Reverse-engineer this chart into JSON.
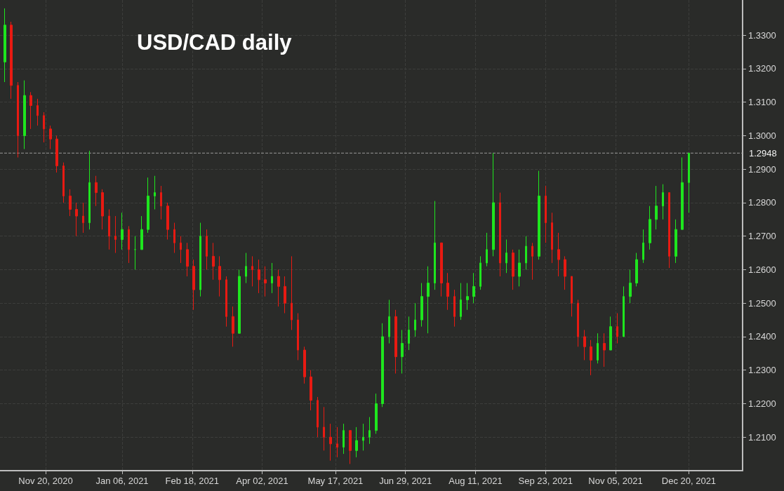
{
  "chart_data": {
    "type": "candlestick",
    "title": "USD/CAD daily",
    "xlim": [
      "2020-10-23",
      "2022-01-22"
    ],
    "xticks": [
      {
        "value": "2020-11-20",
        "label": "Nov 20, 2020"
      },
      {
        "value": "2021-01-06",
        "label": "Jan 06, 2021"
      },
      {
        "value": "2021-02-18",
        "label": "Feb 18, 2021"
      },
      {
        "value": "2021-04-02",
        "label": "Apr 02, 2021"
      },
      {
        "value": "2021-05-17",
        "label": "May 17, 2021"
      },
      {
        "value": "2021-06-29",
        "label": "Jun 29, 2021"
      },
      {
        "value": "2021-08-11",
        "label": "Aug 11, 2021"
      },
      {
        "value": "2021-09-23",
        "label": "Sep 23, 2021"
      },
      {
        "value": "2021-11-05",
        "label": "Nov 05, 2021"
      },
      {
        "value": "2021-12-20",
        "label": "Dec 20, 2021"
      }
    ],
    "ylim": [
      1.2,
      1.3405
    ],
    "yticks": [
      {
        "value": 1.21,
        "label": "1.2100"
      },
      {
        "value": 1.22,
        "label": "1.2200"
      },
      {
        "value": 1.23,
        "label": "1.2300"
      },
      {
        "value": 1.24,
        "label": "1.2400"
      },
      {
        "value": 1.25,
        "label": "1.2500"
      },
      {
        "value": 1.26,
        "label": "1.2600"
      },
      {
        "value": 1.27,
        "label": "1.2700"
      },
      {
        "value": 1.28,
        "label": "1.2800"
      },
      {
        "value": 1.29,
        "label": "1.2900"
      },
      {
        "value": 1.3,
        "label": "1.3000"
      },
      {
        "value": 1.31,
        "label": "1.3100"
      },
      {
        "value": 1.32,
        "label": "1.3200"
      },
      {
        "value": 1.33,
        "label": "1.3300"
      }
    ],
    "grid": true,
    "ref_lines": [
      {
        "axis": "y",
        "value": 1.2948,
        "label": "1.2948",
        "color": "#9a9a9a",
        "line_style": "dashed"
      }
    ],
    "x": [
      "2020-10-26",
      "2020-10-30",
      "2020-11-03",
      "2020-11-07",
      "2020-11-11",
      "2020-11-15",
      "2020-11-19",
      "2020-11-23",
      "2020-11-27",
      "2020-12-01",
      "2020-12-05",
      "2020-12-09",
      "2020-12-13",
      "2020-12-17",
      "2020-12-21",
      "2020-12-25",
      "2020-12-29",
      "2021-01-02",
      "2021-01-06",
      "2021-01-10",
      "2021-01-14",
      "2021-01-18",
      "2021-01-22",
      "2021-01-26",
      "2021-01-30",
      "2021-02-03",
      "2021-02-07",
      "2021-02-11",
      "2021-02-15",
      "2021-02-19",
      "2021-02-23",
      "2021-02-27",
      "2021-03-03",
      "2021-03-07",
      "2021-03-11",
      "2021-03-15",
      "2021-03-19",
      "2021-03-23",
      "2021-03-27",
      "2021-03-31",
      "2021-04-04",
      "2021-04-08",
      "2021-04-12",
      "2021-04-16",
      "2021-04-20",
      "2021-04-24",
      "2021-04-28",
      "2021-05-02",
      "2021-05-06",
      "2021-05-10",
      "2021-05-14",
      "2021-05-18",
      "2021-05-22",
      "2021-05-26",
      "2021-05-30",
      "2021-06-03",
      "2021-06-07",
      "2021-06-11",
      "2021-06-15",
      "2021-06-19",
      "2021-06-23",
      "2021-06-27",
      "2021-07-01",
      "2021-07-05",
      "2021-07-09",
      "2021-07-13",
      "2021-07-17",
      "2021-07-21",
      "2021-07-25",
      "2021-07-29",
      "2021-08-02",
      "2021-08-06",
      "2021-08-10",
      "2021-08-14",
      "2021-08-18",
      "2021-08-22",
      "2021-08-26",
      "2021-08-30",
      "2021-09-03",
      "2021-09-07",
      "2021-09-11",
      "2021-09-15",
      "2021-09-19",
      "2021-09-23",
      "2021-09-27",
      "2021-10-01",
      "2021-10-05",
      "2021-10-09",
      "2021-10-13",
      "2021-10-17",
      "2021-10-21",
      "2021-10-25",
      "2021-10-29",
      "2021-11-02",
      "2021-11-06",
      "2021-11-10",
      "2021-11-14",
      "2021-11-18",
      "2021-11-22",
      "2021-11-26",
      "2021-11-30",
      "2021-12-04",
      "2021-12-08",
      "2021-12-12",
      "2021-12-16",
      "2021-12-20"
    ],
    "ohlc": [
      [
        1.322,
        1.338,
        1.316,
        1.333
      ],
      [
        1.333,
        1.334,
        1.311,
        1.315
      ],
      [
        1.315,
        1.316,
        1.2935,
        1.3
      ],
      [
        1.3,
        1.3165,
        1.296,
        1.312
      ],
      [
        1.312,
        1.313,
        1.302,
        1.309
      ],
      [
        1.309,
        1.311,
        1.303,
        1.306
      ],
      [
        1.306,
        1.307,
        1.298,
        1.302
      ],
      [
        1.302,
        1.303,
        1.296,
        1.299
      ],
      [
        1.299,
        1.3,
        1.289,
        1.291
      ],
      [
        1.291,
        1.292,
        1.28,
        1.282
      ],
      [
        1.282,
        1.284,
        1.276,
        1.278
      ],
      [
        1.278,
        1.28,
        1.27,
        1.276
      ],
      [
        1.276,
        1.28,
        1.271,
        1.274
      ],
      [
        1.274,
        1.2955,
        1.272,
        1.286
      ],
      [
        1.286,
        1.288,
        1.279,
        1.283
      ],
      [
        1.283,
        1.284,
        1.272,
        1.276
      ],
      [
        1.276,
        1.278,
        1.266,
        1.27
      ],
      [
        1.27,
        1.276,
        1.265,
        1.269
      ],
      [
        1.269,
        1.277,
        1.266,
        1.272
      ],
      [
        1.272,
        1.273,
        1.262,
        1.266
      ],
      [
        1.266,
        1.27,
        1.26,
        1.266
      ],
      [
        1.266,
        1.276,
        1.266,
        1.272
      ],
      [
        1.272,
        1.2875,
        1.271,
        1.282
      ],
      [
        1.282,
        1.288,
        1.278,
        1.283
      ],
      [
        1.283,
        1.285,
        1.275,
        1.279
      ],
      [
        1.279,
        1.28,
        1.269,
        1.272
      ],
      [
        1.272,
        1.274,
        1.265,
        1.268
      ],
      [
        1.268,
        1.27,
        1.262,
        1.266
      ],
      [
        1.266,
        1.268,
        1.258,
        1.261
      ],
      [
        1.261,
        1.263,
        1.248,
        1.254
      ],
      [
        1.254,
        1.274,
        1.252,
        1.27
      ],
      [
        1.27,
        1.272,
        1.26,
        1.264
      ],
      [
        1.264,
        1.268,
        1.257,
        1.261
      ],
      [
        1.261,
        1.264,
        1.252,
        1.257
      ],
      [
        1.257,
        1.258,
        1.243,
        1.246
      ],
      [
        1.246,
        1.249,
        1.237,
        1.241
      ],
      [
        1.241,
        1.26,
        1.241,
        1.258
      ],
      [
        1.258,
        1.265,
        1.256,
        1.261
      ],
      [
        1.261,
        1.264,
        1.255,
        1.26
      ],
      [
        1.26,
        1.263,
        1.253,
        1.257
      ],
      [
        1.257,
        1.261,
        1.252,
        1.256
      ],
      [
        1.256,
        1.262,
        1.253,
        1.258
      ],
      [
        1.258,
        1.26,
        1.249,
        1.255
      ],
      [
        1.255,
        1.258,
        1.247,
        1.25
      ],
      [
        1.25,
        1.264,
        1.242,
        1.245
      ],
      [
        1.245,
        1.247,
        1.233,
        1.236
      ],
      [
        1.236,
        1.237,
        1.226,
        1.228
      ],
      [
        1.228,
        1.23,
        1.218,
        1.221
      ],
      [
        1.221,
        1.222,
        1.21,
        1.213
      ],
      [
        1.213,
        1.219,
        1.206,
        1.21
      ],
      [
        1.21,
        1.214,
        1.203,
        1.208
      ],
      [
        1.208,
        1.213,
        1.204,
        1.207
      ],
      [
        1.207,
        1.214,
        1.205,
        1.212
      ],
      [
        1.212,
        1.212,
        1.202,
        1.206
      ],
      [
        1.206,
        1.213,
        1.204,
        1.209
      ],
      [
        1.209,
        1.214,
        1.206,
        1.21
      ],
      [
        1.21,
        1.216,
        1.208,
        1.212
      ],
      [
        1.212,
        1.223,
        1.211,
        1.22
      ],
      [
        1.22,
        1.244,
        1.219,
        1.24
      ],
      [
        1.24,
        1.251,
        1.238,
        1.246
      ],
      [
        1.246,
        1.248,
        1.229,
        1.234
      ],
      [
        1.234,
        1.242,
        1.229,
        1.238
      ],
      [
        1.238,
        1.246,
        1.236,
        1.242
      ],
      [
        1.242,
        1.25,
        1.24,
        1.245
      ],
      [
        1.245,
        1.256,
        1.243,
        1.252
      ],
      [
        1.252,
        1.261,
        1.241,
        1.256
      ],
      [
        1.256,
        1.2805,
        1.254,
        1.268
      ],
      [
        1.268,
        1.268,
        1.252,
        1.256
      ],
      [
        1.256,
        1.259,
        1.248,
        1.252
      ],
      [
        1.252,
        1.254,
        1.243,
        1.246
      ],
      [
        1.246,
        1.256,
        1.245,
        1.251
      ],
      [
        1.251,
        1.256,
        1.248,
        1.252
      ],
      [
        1.252,
        1.259,
        1.25,
        1.255
      ],
      [
        1.255,
        1.264,
        1.254,
        1.262
      ],
      [
        1.262,
        1.271,
        1.261,
        1.266
      ],
      [
        1.266,
        1.2948,
        1.264,
        1.28
      ],
      [
        1.28,
        1.283,
        1.258,
        1.262
      ],
      [
        1.262,
        1.269,
        1.259,
        1.265
      ],
      [
        1.265,
        1.266,
        1.254,
        1.258
      ],
      [
        1.258,
        1.266,
        1.255,
        1.262
      ],
      [
        1.262,
        1.27,
        1.26,
        1.267
      ],
      [
        1.267,
        1.268,
        1.257,
        1.264
      ],
      [
        1.264,
        1.2895,
        1.263,
        1.282
      ],
      [
        1.282,
        1.285,
        1.268,
        1.274
      ],
      [
        1.274,
        1.277,
        1.262,
        1.266
      ],
      [
        1.266,
        1.271,
        1.258,
        1.263
      ],
      [
        1.263,
        1.264,
        1.254,
        1.258
      ],
      [
        1.258,
        1.258,
        1.246,
        1.25
      ],
      [
        1.25,
        1.251,
        1.237,
        1.24
      ],
      [
        1.24,
        1.242,
        1.233,
        1.237
      ],
      [
        1.237,
        1.239,
        1.2285,
        1.233
      ],
      [
        1.233,
        1.241,
        1.232,
        1.238
      ],
      [
        1.238,
        1.241,
        1.231,
        1.236
      ],
      [
        1.236,
        1.246,
        1.236,
        1.243
      ],
      [
        1.243,
        1.247,
        1.238,
        1.24
      ],
      [
        1.24,
        1.255,
        1.24,
        1.252
      ],
      [
        1.252,
        1.26,
        1.25,
        1.256
      ],
      [
        1.256,
        1.265,
        1.255,
        1.263
      ],
      [
        1.263,
        1.272,
        1.262,
        1.268
      ],
      [
        1.268,
        1.279,
        1.266,
        1.275
      ],
      [
        1.275,
        1.285,
        1.272,
        1.279
      ],
      [
        1.279,
        1.2855,
        1.275,
        1.283
      ],
      [
        1.283,
        1.283,
        1.2605,
        1.264
      ],
      [
        1.264,
        1.275,
        1.262,
        1.272
      ],
      [
        1.272,
        1.2935,
        1.272,
        1.286
      ],
      [
        1.286,
        1.2948,
        1.277,
        1.2948
      ]
    ]
  }
}
